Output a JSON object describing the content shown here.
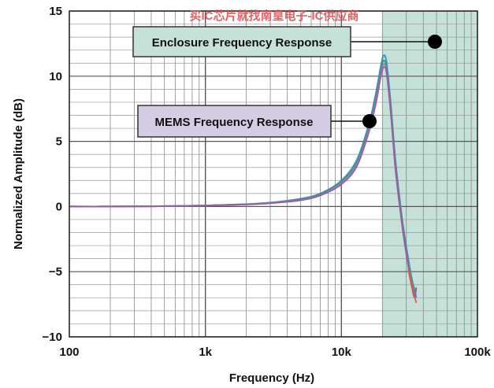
{
  "watermark": "买IC芯片就找南皇电子-IC供应商",
  "chart_data": {
    "type": "line",
    "xscale": "log",
    "xlim": [
      100,
      100000
    ],
    "ylim": [
      -10,
      15
    ],
    "xlabel": "Frequency (Hz)",
    "ylabel": "Normalized Amplitude (dB)",
    "xticks": [
      100,
      1000,
      10000,
      100000
    ],
    "xtick_labels": [
      "100",
      "1k",
      "10k",
      "100k"
    ],
    "yticks": [
      15,
      10,
      5,
      0,
      -5,
      -10
    ],
    "ytick_labels": [
      "15",
      "10",
      "5",
      "0",
      "−5",
      "−10"
    ],
    "grid": true,
    "shaded_region": {
      "x_from": 20000,
      "x_to": 100000,
      "color": "#c6e2d8"
    },
    "annotations": [
      {
        "text": "Enclosure Frequency Response",
        "color": "#c6e2d8",
        "points_to": "shaded-region"
      },
      {
        "text": "MEMS Frequency Response",
        "color": "#d4cde3",
        "points_to": "curve"
      }
    ],
    "series": [
      {
        "color": "#2a8fb8",
        "x": [
          100,
          200,
          400,
          700,
          1000,
          2000,
          3000,
          5000,
          7000,
          10000,
          13000,
          16000,
          18000,
          19500,
          20500,
          21500,
          23000,
          25000,
          28000,
          31000,
          33000,
          34500,
          35500
        ],
        "y": [
          0.0,
          0.0,
          0.02,
          0.05,
          0.08,
          0.18,
          0.3,
          0.6,
          1.0,
          2.0,
          3.6,
          6.4,
          8.8,
          10.8,
          11.6,
          11.0,
          8.0,
          3.5,
          -1.0,
          -4.0,
          -5.6,
          -6.4,
          -7.0
        ]
      },
      {
        "color": "#3f8f6f",
        "x": [
          100,
          200,
          400,
          700,
          1000,
          2000,
          3000,
          5000,
          7000,
          10000,
          13000,
          16000,
          18000,
          19500,
          20500,
          21500,
          23000,
          25000,
          28000,
          31000,
          33000,
          34500,
          35500
        ],
        "y": [
          0.0,
          0.0,
          0.02,
          0.05,
          0.08,
          0.17,
          0.28,
          0.55,
          0.95,
          1.9,
          3.4,
          6.2,
          8.5,
          10.5,
          11.2,
          10.6,
          7.7,
          3.2,
          -1.2,
          -4.2,
          -5.8,
          -6.6,
          -6.3
        ]
      },
      {
        "color": "#8a7fc0",
        "x": [
          100,
          200,
          400,
          700,
          1000,
          2000,
          3000,
          5000,
          7000,
          10000,
          13000,
          16000,
          18000,
          19500,
          20500,
          21500,
          23000,
          25000,
          28000,
          31000,
          33000,
          34500,
          35500
        ],
        "y": [
          0.0,
          0.0,
          0.02,
          0.05,
          0.08,
          0.16,
          0.27,
          0.5,
          0.9,
          1.8,
          3.2,
          6.0,
          8.2,
          10.2,
          10.9,
          10.4,
          7.5,
          3.0,
          -1.4,
          -4.4,
          -6.0,
          -6.8,
          -6.9
        ]
      },
      {
        "color": "#9b5aa0",
        "x": [
          100,
          200,
          400,
          700,
          1000,
          2000,
          3000,
          5000,
          7000,
          10000,
          13000,
          16000,
          18000,
          19500,
          20500,
          21500,
          23000,
          25000,
          28000,
          31000,
          33000,
          34500,
          35500
        ],
        "y": [
          0.0,
          0.0,
          0.02,
          0.04,
          0.07,
          0.15,
          0.25,
          0.48,
          0.85,
          1.7,
          3.1,
          5.8,
          8.0,
          10.0,
          10.7,
          10.2,
          7.3,
          2.8,
          -1.5,
          -4.6,
          -6.2,
          -7.0,
          -6.2
        ]
      },
      {
        "color": "#e05a3a",
        "x": [
          31000,
          33000,
          34500,
          35500
        ],
        "y": [
          -4.8,
          -6.2,
          -6.9,
          -7.4
        ]
      }
    ]
  }
}
